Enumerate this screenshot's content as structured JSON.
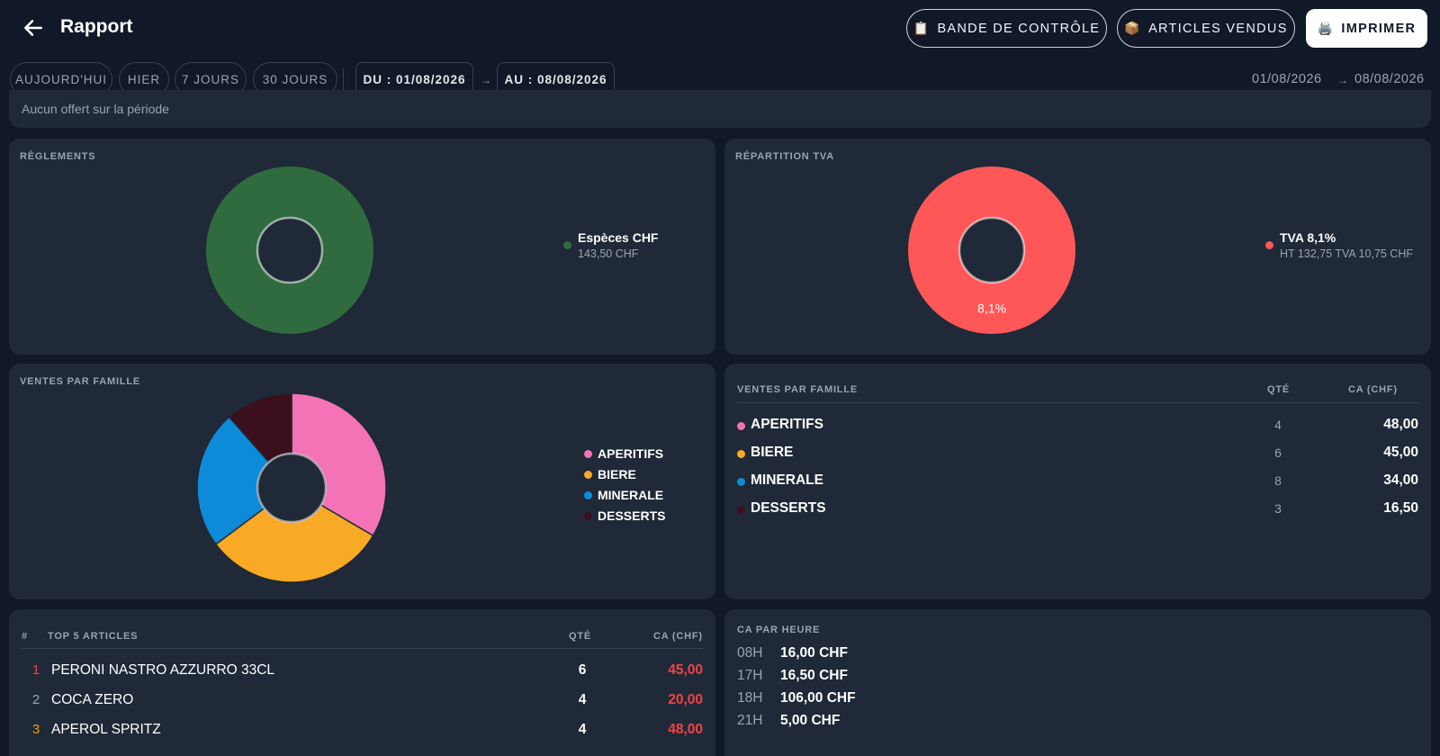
{
  "header": {
    "title": "Rapport",
    "btn_bande": "BANDE DE CONTRÔLE",
    "btn_articles": "ARTICLES VENDUS",
    "btn_print": "IMPRIMER"
  },
  "filters": {
    "today": "AUJOURD'HUI",
    "yesterday": "HIER",
    "days7": "7 JOURS",
    "days30": "30 JOURS",
    "from": "DU : 01/08/2026",
    "to": "AU : 08/08/2026",
    "arrow": "→",
    "range_start": "01/08/2026",
    "range_end": "08/08/2026"
  },
  "offert": {
    "text": "Aucun offert sur la période"
  },
  "reglements": {
    "label": "RÈGLEMENTS",
    "legend": [
      {
        "name": "Espèces CHF",
        "detail": "143,50 CHF",
        "color": "#2f6b3e"
      }
    ]
  },
  "tva": {
    "label": "RÉPARTITION TVA",
    "slice_label": "8,1%",
    "legend": [
      {
        "name": "TVA 8,1%",
        "detail": "HT 132,75  TVA 10,75 CHF",
        "color": "#ff5757"
      }
    ]
  },
  "familles_chart": {
    "label": "VENTES PAR FAMILLE",
    "legend": [
      "APERITIFS",
      "BIERE",
      "MINERALE",
      "DESSERTS"
    ]
  },
  "familles_table": {
    "label": "VENTES PAR FAMILLE",
    "col_qty": "QTÉ",
    "col_ca": "CA (CHF)",
    "rows": [
      {
        "name": "APERITIFS",
        "qty": "4",
        "ca": "48,00",
        "color": "#f472b6"
      },
      {
        "name": "BIERE",
        "qty": "6",
        "ca": "45,00",
        "color": "#f8a925"
      },
      {
        "name": "MINERALE",
        "qty": "8",
        "ca": "34,00",
        "color": "#0d8bd9"
      },
      {
        "name": "DESSERTS",
        "qty": "3",
        "ca": "16,50",
        "color": "#3b0f1e"
      }
    ]
  },
  "top5": {
    "col_rank": "#",
    "label": "TOP 5 ARTICLES",
    "col_qty": "QTÉ",
    "col_ca": "CA (CHF)",
    "rows": [
      {
        "rank": "1",
        "name": "PERONI NASTRO AZZURRO 33CL",
        "qty": "6",
        "ca": "45,00",
        "rank_color": "#ef4444"
      },
      {
        "rank": "2",
        "name": "COCA ZERO",
        "qty": "4",
        "ca": "20,00",
        "rank_color": "#9ca3af"
      },
      {
        "rank": "3",
        "name": "APEROL SPRITZ",
        "qty": "4",
        "ca": "48,00",
        "rank_color": "#f59e0b"
      }
    ]
  },
  "heures": {
    "label": "CA PAR HEURE",
    "rows": [
      {
        "hour": "08H",
        "value": "16,00 CHF"
      },
      {
        "hour": "17H",
        "value": "16,50 CHF"
      },
      {
        "hour": "18H",
        "value": "106,00 CHF"
      },
      {
        "hour": "21H",
        "value": "5,00 CHF"
      }
    ]
  },
  "chart_data": [
    {
      "type": "pie",
      "title": "RÈGLEMENTS",
      "categories": [
        "Espèces CHF"
      ],
      "values": [
        143.5
      ],
      "colors": [
        "#2f6b3e"
      ],
      "legend": "right"
    },
    {
      "type": "pie",
      "title": "RÉPARTITION TVA",
      "categories": [
        "TVA 8,1%"
      ],
      "values": [
        132.75
      ],
      "colors": [
        "#ff5757"
      ],
      "legend": "right"
    },
    {
      "type": "pie",
      "title": "VENTES PAR FAMILLE",
      "categories": [
        "APERITIFS",
        "BIERE",
        "MINERALE",
        "DESSERTS"
      ],
      "values": [
        48.0,
        45.0,
        34.0,
        16.5
      ],
      "colors": [
        "#f472b6",
        "#f8a925",
        "#0d8bd9",
        "#3b0f1e"
      ],
      "legend": "right"
    }
  ]
}
